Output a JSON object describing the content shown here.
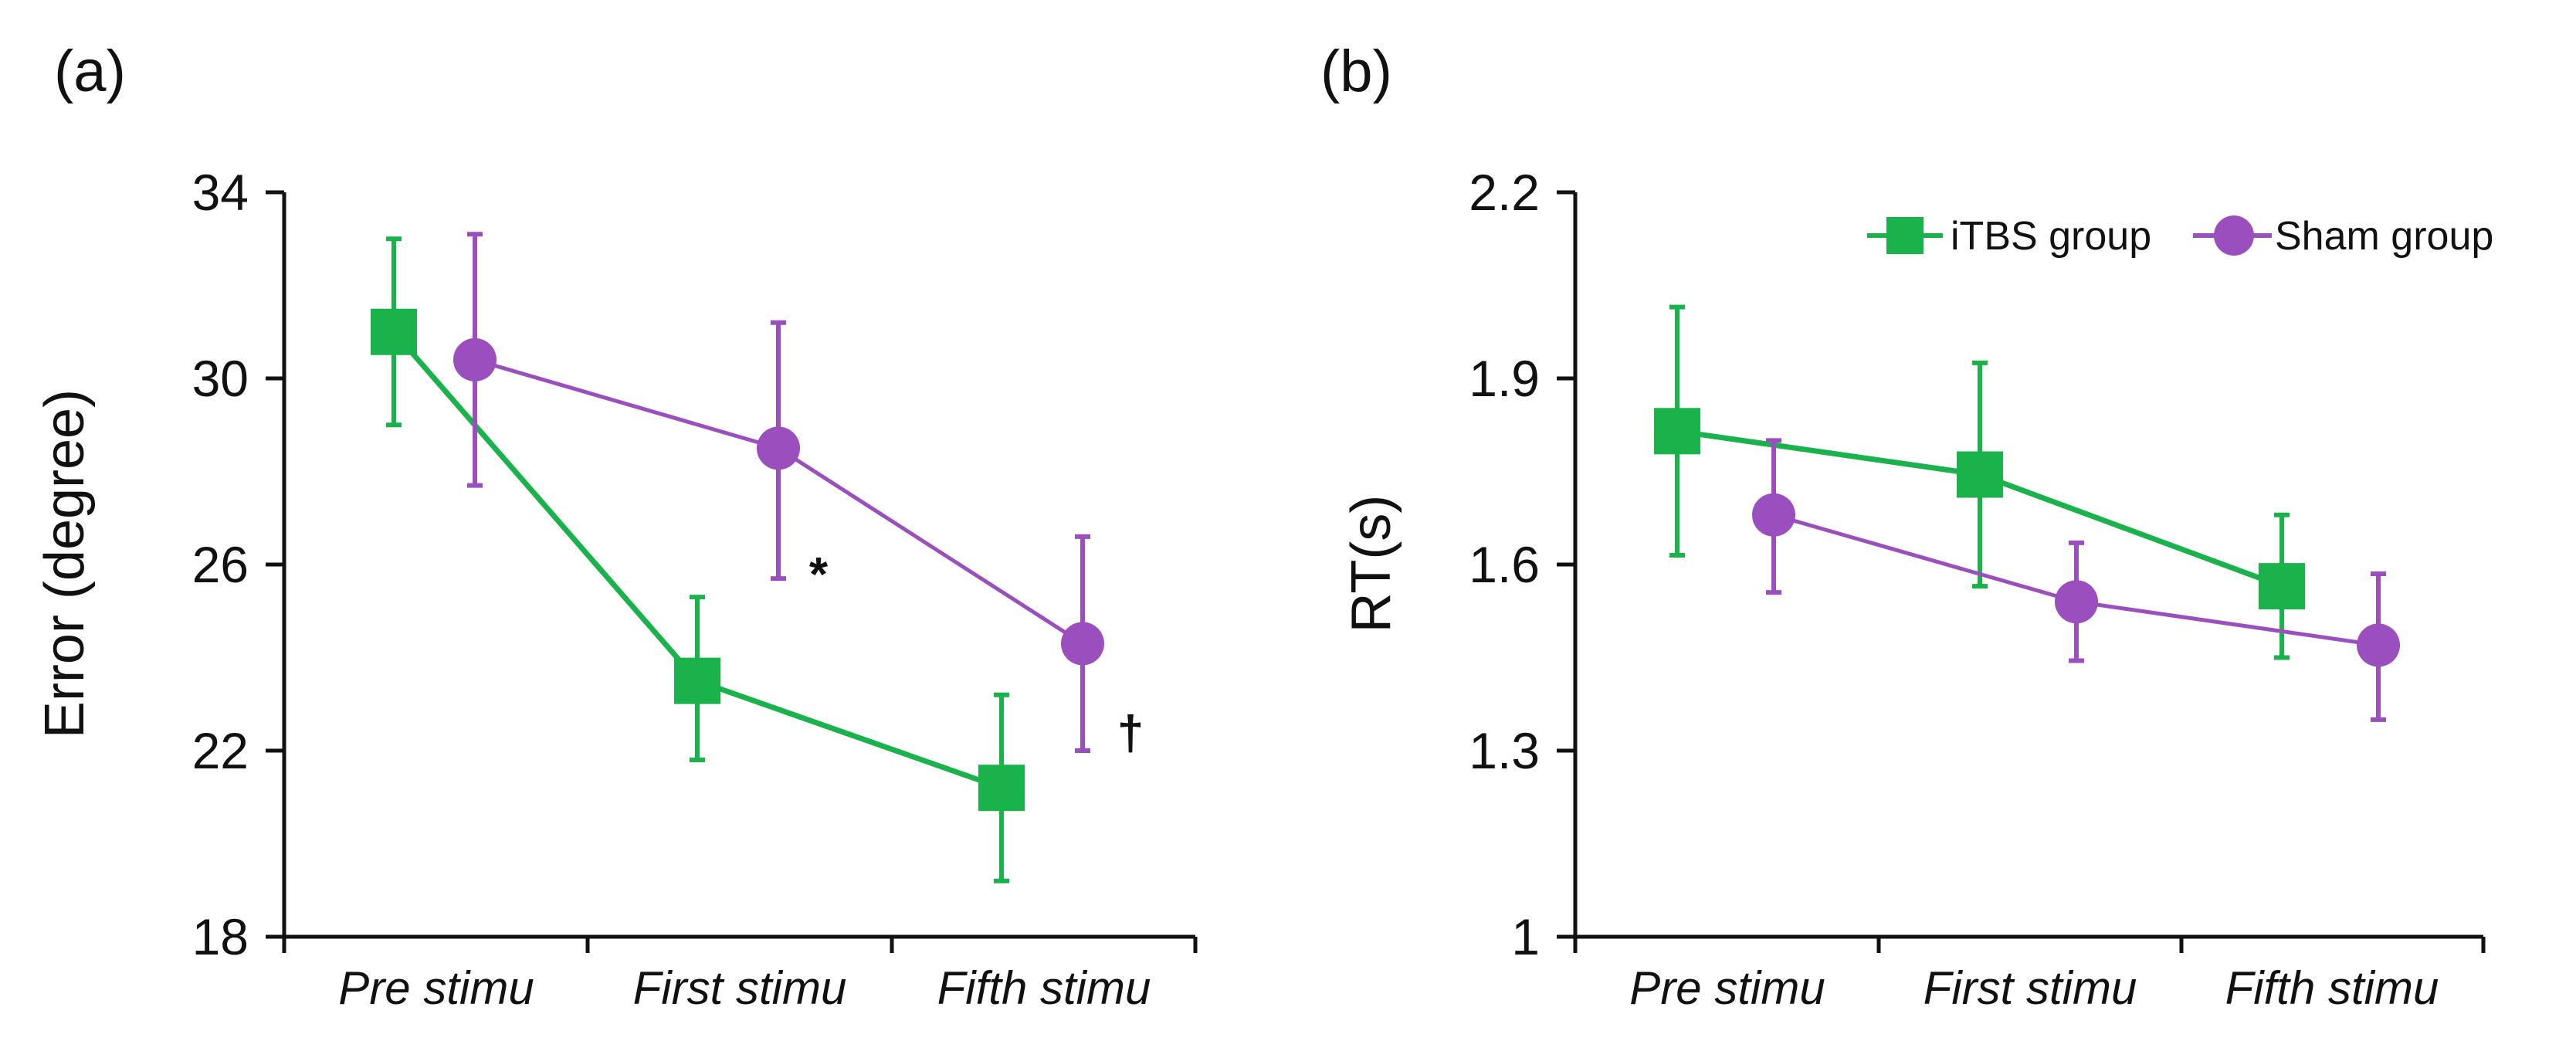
{
  "colors": {
    "itbs": "#19b24b",
    "sham": "#9b4fbf",
    "axis": "#111111"
  },
  "chart_data": [
    {
      "type": "line",
      "panel_label": "(a)",
      "title": "",
      "xlabel": "",
      "ylabel": "Error (degree)",
      "ylim": [
        18,
        34
      ],
      "yticks": [
        "18",
        "22",
        "26",
        "30",
        "34"
      ],
      "categories": [
        "Pre stimu",
        "First stimu",
        "Fifth stimu"
      ],
      "series": [
        {
          "name": "iTBS group",
          "marker": "square",
          "values": [
            31.0,
            23.5,
            21.2
          ],
          "err_low": [
            29.0,
            21.8,
            19.2
          ],
          "err_high": [
            33.0,
            25.3,
            23.2
          ]
        },
        {
          "name": "Sham group",
          "marker": "circle",
          "values": [
            30.4,
            28.5,
            24.3
          ],
          "err_low": [
            27.7,
            25.7,
            22.0
          ],
          "err_high": [
            33.1,
            31.2,
            26.6
          ]
        }
      ],
      "annotations": [
        {
          "text": "*",
          "category": "First stimu",
          "y": 25.8
        },
        {
          "text": "†",
          "category": "Fifth stimu",
          "y": 22.4
        }
      ],
      "legend": null
    },
    {
      "type": "line",
      "panel_label": "(b)",
      "title": "",
      "xlabel": "",
      "ylabel": "RT(s)",
      "ylim": [
        1,
        2.2
      ],
      "yticks": [
        "1",
        "1.3",
        "1.6",
        "1.9",
        "2.2"
      ],
      "categories": [
        "Pre stimu",
        "First stimu",
        "Fifth stimu"
      ],
      "series": [
        {
          "name": "iTBS group",
          "marker": "square",
          "values": [
            1.815,
            1.745,
            1.565
          ],
          "err_low": [
            1.615,
            1.565,
            1.45
          ],
          "err_high": [
            2.015,
            1.925,
            1.68
          ]
        },
        {
          "name": "Sham group",
          "marker": "circle",
          "values": [
            1.68,
            1.54,
            1.47
          ],
          "err_low": [
            1.555,
            1.445,
            1.35
          ],
          "err_high": [
            1.8,
            1.635,
            1.585
          ]
        }
      ],
      "annotations": [],
      "legend": {
        "position": "top-right",
        "entries": [
          "iTBS group",
          "Sham group"
        ]
      }
    }
  ]
}
